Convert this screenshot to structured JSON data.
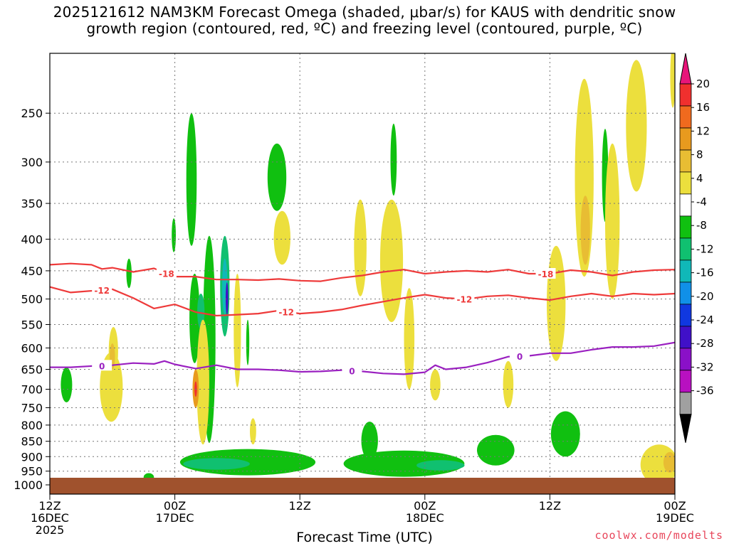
{
  "title_line1": "2025121612 NAM3KM Forecast Omega (shaded, μbar/s) for KAUS with dendritic snow",
  "title_line2": "growth region (contoured, red, ºC) and freezing level (contoured, purple, ºC)",
  "credit": "coolwx.com/modelts",
  "chart_data": {
    "type": "heatmap",
    "title": "2025121612 NAM3KM Forecast Omega (shaded, μbar/s) for KAUS with dendritic snow growth region (contoured, red, ºC) and freezing level (contoured, purple, ºC)",
    "xlabel": "Forecast Time (UTC)",
    "ylabel": "",
    "x_unit": "forecast hour",
    "xlim": [
      0,
      60
    ],
    "ylim_hpa": [
      1035,
      200
    ],
    "y_scale": "log-pressure",
    "grid": true,
    "x_ticks": [
      {
        "hour": 0,
        "lines": [
          "12Z",
          "16DEC",
          "2025"
        ]
      },
      {
        "hour": 12,
        "lines": [
          "00Z",
          "17DEC"
        ]
      },
      {
        "hour": 24,
        "lines": [
          "12Z"
        ]
      },
      {
        "hour": 36,
        "lines": [
          "00Z",
          "18DEC"
        ]
      },
      {
        "hour": 48,
        "lines": [
          "12Z"
        ]
      },
      {
        "hour": 60,
        "lines": [
          "00Z",
          "19DEC"
        ]
      }
    ],
    "y_ticks": [
      250,
      300,
      350,
      400,
      450,
      500,
      550,
      600,
      650,
      700,
      750,
      800,
      850,
      900,
      950,
      1000
    ],
    "colorbar": {
      "labels": [
        "20",
        "16",
        "12",
        "8",
        "4",
        "-4",
        "-8",
        "-12",
        "-16",
        "-20",
        "-24",
        "-28",
        "-32",
        "-36"
      ],
      "colors": [
        "#e8157a",
        "#f0302e",
        "#f06a1e",
        "#e89a1e",
        "#e8bd33",
        "#ecdf3d",
        "#ffffff",
        "#10c010",
        "#10c070",
        "#10b8b8",
        "#1090e8",
        "#1038e0",
        "#4010c8",
        "#8a10c8",
        "#b810c0",
        "#a0a0a0",
        "#000000"
      ]
    },
    "omega_regions": [
      {
        "level": "-8",
        "hour": 1.6,
        "p": 690,
        "hw": 0.55,
        "hp": 45
      },
      {
        "level": "-8",
        "hour": 7.6,
        "p": 455,
        "hw": 0.25,
        "hp": 25
      },
      {
        "level": "-8",
        "hour": 9.5,
        "p": 972,
        "hw": 0.5,
        "hp": 15
      },
      {
        "level": "-8",
        "hour": 13.6,
        "p": 330,
        "hw": 0.5,
        "hp": 80
      },
      {
        "level": "-8",
        "hour": 11.9,
        "p": 395,
        "hw": 0.2,
        "hp": 25
      },
      {
        "level": "-8",
        "hour": 15.3,
        "p": 625,
        "hw": 0.6,
        "hp": 230
      },
      {
        "level": "-8",
        "hour": 13.9,
        "p": 545,
        "hw": 0.5,
        "hp": 90
      },
      {
        "level": "-8",
        "hour": 19.0,
        "p": 920,
        "hw": 6.5,
        "hp": 45
      },
      {
        "level": "-8",
        "hour": 21.8,
        "p": 320,
        "hw": 0.9,
        "hp": 40
      },
      {
        "level": "-8",
        "hour": 34.0,
        "p": 925,
        "hw": 5.8,
        "hp": 45
      },
      {
        "level": "-8",
        "hour": 30.7,
        "p": 850,
        "hw": 0.8,
        "hp": 60
      },
      {
        "level": "-8",
        "hour": 49.5,
        "p": 830,
        "hw": 1.4,
        "hp": 70
      },
      {
        "level": "-8",
        "hour": 42.8,
        "p": 880,
        "hw": 1.8,
        "hp": 50
      },
      {
        "level": "-8",
        "hour": 19.0,
        "p": 590,
        "hw": 0.15,
        "hp": 50
      },
      {
        "level": "-8",
        "hour": 33.0,
        "p": 300,
        "hw": 0.3,
        "hp": 40
      },
      {
        "level": "-8",
        "hour": 53.3,
        "p": 320,
        "hw": 0.3,
        "hp": 55
      },
      {
        "level": "-12",
        "hour": 14.5,
        "p": 525,
        "hw": 0.35,
        "hp": 35
      },
      {
        "level": "-12",
        "hour": 16.8,
        "p": 485,
        "hw": 0.45,
        "hp": 90
      },
      {
        "level": "-12",
        "hour": 16.0,
        "p": 925,
        "hw": 3.2,
        "hp": 20
      },
      {
        "level": "-12",
        "hour": 37.5,
        "p": 930,
        "hw": 2.3,
        "hp": 18
      },
      {
        "level": "-16",
        "hour": 16.8,
        "p": 480,
        "hw": 0.25,
        "hp": 50
      },
      {
        "level": "-24",
        "hour": 17.0,
        "p": 500,
        "hw": 0.12,
        "hp": 30
      },
      {
        "level": "4",
        "hour": 5.9,
        "p": 700,
        "hw": 1.1,
        "hp": 90
      },
      {
        "level": "4",
        "hour": 6.1,
        "p": 610,
        "hw": 0.45,
        "hp": 55
      },
      {
        "level": "4",
        "hour": 14.7,
        "p": 700,
        "hw": 0.6,
        "hp": 160
      },
      {
        "level": "4",
        "hour": 18.0,
        "p": 575,
        "hw": 0.35,
        "hp": 120
      },
      {
        "level": "4",
        "hour": 22.3,
        "p": 400,
        "hw": 0.8,
        "hp": 40
      },
      {
        "level": "4",
        "hour": 19.5,
        "p": 820,
        "hw": 0.3,
        "hp": 40
      },
      {
        "level": "4",
        "hour": 29.8,
        "p": 420,
        "hw": 0.6,
        "hp": 75
      },
      {
        "level": "4",
        "hour": 32.8,
        "p": 445,
        "hw": 1.1,
        "hp": 100
      },
      {
        "level": "4",
        "hour": 34.5,
        "p": 590,
        "hw": 0.5,
        "hp": 110
      },
      {
        "level": "4",
        "hour": 37.0,
        "p": 690,
        "hw": 0.5,
        "hp": 40
      },
      {
        "level": "4",
        "hour": 44.0,
        "p": 690,
        "hw": 0.5,
        "hp": 60
      },
      {
        "level": "4",
        "hour": 48.6,
        "p": 520,
        "hw": 0.9,
        "hp": 110
      },
      {
        "level": "4",
        "hour": 51.3,
        "p": 340,
        "hw": 0.9,
        "hp": 120
      },
      {
        "level": "4",
        "hour": 54.0,
        "p": 390,
        "hw": 0.7,
        "hp": 110
      },
      {
        "level": "4",
        "hour": 56.3,
        "p": 270,
        "hw": 1.0,
        "hp": 65
      },
      {
        "level": "4",
        "hour": 58.5,
        "p": 930,
        "hw": 1.8,
        "hp": 70
      },
      {
        "level": "4",
        "hour": 59.8,
        "p": 220,
        "hw": 0.25,
        "hp": 25
      },
      {
        "level": "8",
        "hour": 6.0,
        "p": 620,
        "hw": 0.25,
        "hp": 30
      },
      {
        "level": "8",
        "hour": 51.4,
        "p": 390,
        "hw": 0.45,
        "hp": 50
      },
      {
        "level": "8",
        "hour": 59.5,
        "p": 920,
        "hw": 0.6,
        "hp": 35
      },
      {
        "level": "12",
        "hour": 14.0,
        "p": 700,
        "hw": 0.3,
        "hp": 50
      },
      {
        "level": "20",
        "hour": 14.0,
        "p": 700,
        "hw": 0.12,
        "hp": 20
      }
    ],
    "contours": [
      {
        "label": "-18",
        "color": "#ee3a3a",
        "points": [
          [
            0,
            440
          ],
          [
            2,
            438
          ],
          [
            4,
            440
          ],
          [
            5,
            447
          ],
          [
            6,
            445
          ],
          [
            8,
            452
          ],
          [
            10,
            446
          ],
          [
            12,
            460
          ],
          [
            14,
            460
          ],
          [
            16,
            465
          ],
          [
            18,
            465
          ],
          [
            20,
            466
          ],
          [
            22,
            464
          ],
          [
            24,
            467
          ],
          [
            26,
            468
          ],
          [
            28,
            462
          ],
          [
            30,
            458
          ],
          [
            32,
            452
          ],
          [
            34,
            448
          ],
          [
            36,
            455
          ],
          [
            38,
            452
          ],
          [
            40,
            450
          ],
          [
            42,
            452
          ],
          [
            44,
            448
          ],
          [
            46,
            455
          ],
          [
            48,
            455
          ],
          [
            50,
            449
          ],
          [
            52,
            452
          ],
          [
            54,
            458
          ],
          [
            56,
            452
          ],
          [
            58,
            449
          ],
          [
            60,
            448
          ]
        ]
      },
      {
        "label": "-12",
        "color": "#ee3a3a",
        "points": [
          [
            0,
            478
          ],
          [
            2,
            488
          ],
          [
            4,
            485
          ],
          [
            6,
            482
          ],
          [
            8,
            498
          ],
          [
            10,
            518
          ],
          [
            12,
            510
          ],
          [
            14,
            525
          ],
          [
            16,
            532
          ],
          [
            18,
            530
          ],
          [
            20,
            528
          ],
          [
            22,
            522
          ],
          [
            24,
            528
          ],
          [
            26,
            525
          ],
          [
            28,
            520
          ],
          [
            30,
            512
          ],
          [
            32,
            505
          ],
          [
            34,
            498
          ],
          [
            36,
            492
          ],
          [
            38,
            498
          ],
          [
            40,
            500
          ],
          [
            42,
            495
          ],
          [
            44,
            493
          ],
          [
            46,
            498
          ],
          [
            48,
            502
          ],
          [
            50,
            495
          ],
          [
            52,
            490
          ],
          [
            54,
            495
          ],
          [
            56,
            490
          ],
          [
            58,
            492
          ],
          [
            60,
            490
          ]
        ]
      },
      {
        "label": "0",
        "color": "#9a20c0",
        "points": [
          [
            0,
            645
          ],
          [
            2,
            645
          ],
          [
            4,
            642
          ],
          [
            6,
            640
          ],
          [
            8,
            635
          ],
          [
            10,
            637
          ],
          [
            11,
            630
          ],
          [
            12,
            638
          ],
          [
            14,
            648
          ],
          [
            16,
            640
          ],
          [
            18,
            650
          ],
          [
            20,
            650
          ],
          [
            22,
            652
          ],
          [
            24,
            656
          ],
          [
            26,
            655
          ],
          [
            28,
            652
          ],
          [
            30,
            655
          ],
          [
            32,
            660
          ],
          [
            34,
            662
          ],
          [
            36,
            657
          ],
          [
            37,
            640
          ],
          [
            38,
            650
          ],
          [
            40,
            645
          ],
          [
            42,
            634
          ],
          [
            44,
            620
          ],
          [
            46,
            618
          ],
          [
            48,
            612
          ],
          [
            50,
            612
          ],
          [
            52,
            604
          ],
          [
            54,
            598
          ],
          [
            56,
            598
          ],
          [
            58,
            596
          ],
          [
            60,
            588
          ]
        ]
      }
    ]
  }
}
